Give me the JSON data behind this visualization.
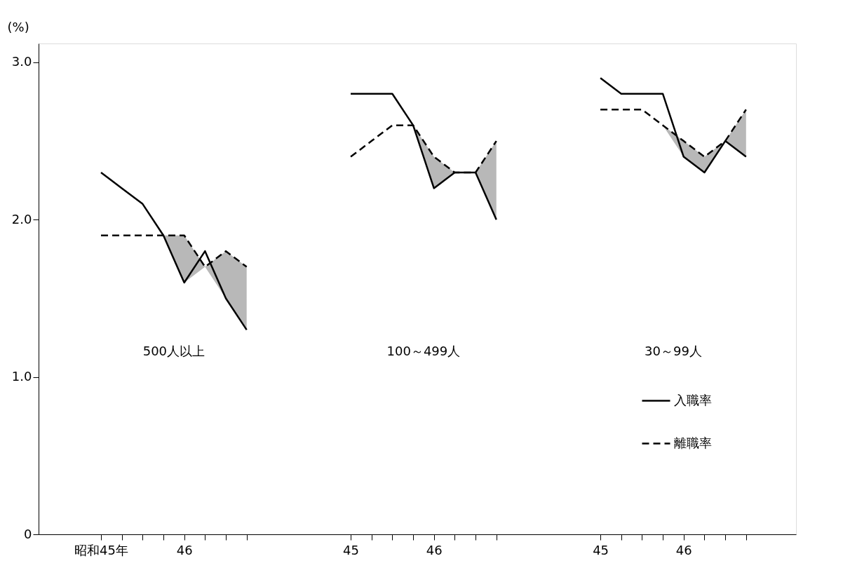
{
  "chart_data": {
    "type": "line",
    "ylabel": "(%)",
    "categories": [
      "昭和45年",
      null,
      null,
      null,
      "46",
      null,
      null,
      null,
      null,
      null,
      null,
      null,
      "45",
      null,
      null,
      null,
      "46",
      null,
      null,
      null,
      null,
      null,
      null,
      null,
      "45",
      null,
      null,
      null,
      "46",
      null,
      null,
      null
    ],
    "series": [
      {
        "name": "入職率",
        "color": "#000000",
        "line_style": "solid",
        "values": [
          2.3,
          2.2,
          2.1,
          1.9,
          1.6,
          1.8,
          1.5,
          1.3,
          null,
          null,
          null,
          null,
          2.8,
          2.8,
          2.8,
          2.6,
          2.2,
          2.3,
          2.3,
          2.0,
          null,
          null,
          null,
          null,
          2.9,
          2.8,
          2.8,
          2.8,
          2.4,
          2.3,
          2.5,
          2.4
        ]
      },
      {
        "name": "離職率",
        "color": "#000000",
        "line_style": "dashed",
        "values": [
          1.9,
          1.9,
          1.9,
          1.9,
          1.9,
          1.7,
          1.8,
          1.7,
          null,
          null,
          null,
          null,
          2.4,
          2.5,
          2.6,
          2.6,
          2.4,
          2.3,
          2.3,
          2.5,
          null,
          null,
          null,
          null,
          2.7,
          2.7,
          2.7,
          2.6,
          2.5,
          2.4,
          2.5,
          2.7
        ],
        "lower": [
          null,
          null,
          null,
          1.9,
          1.6,
          1.7,
          1.5,
          1.3,
          null,
          null,
          null,
          null,
          null,
          null,
          null,
          2.6,
          2.2,
          2.3,
          2.3,
          2.0,
          null,
          null,
          null,
          null,
          null,
          null,
          null,
          2.6,
          2.4,
          2.3,
          2.5,
          2.4
        ],
        "upper": [
          null,
          null,
          null,
          1.9,
          1.9,
          1.7,
          1.8,
          1.7,
          null,
          null,
          null,
          null,
          null,
          null,
          null,
          2.6,
          2.4,
          2.3,
          2.3,
          2.5,
          null,
          null,
          null,
          null,
          null,
          null,
          null,
          2.6,
          2.5,
          2.4,
          2.5,
          2.7
        ]
      }
    ],
    "ylim": [
      0,
      3.12
    ],
    "yticks": [
      {
        "value": 0,
        "label": "0"
      },
      {
        "value": 1,
        "label": "1.0"
      },
      {
        "value": 2,
        "label": "2.0"
      },
      {
        "value": 3,
        "label": "3.0"
      }
    ],
    "annotations": [
      "500人以上",
      "100～499人",
      "30～99人"
    ],
    "grid": false,
    "legend": "bottom right",
    "marker": "none"
  }
}
